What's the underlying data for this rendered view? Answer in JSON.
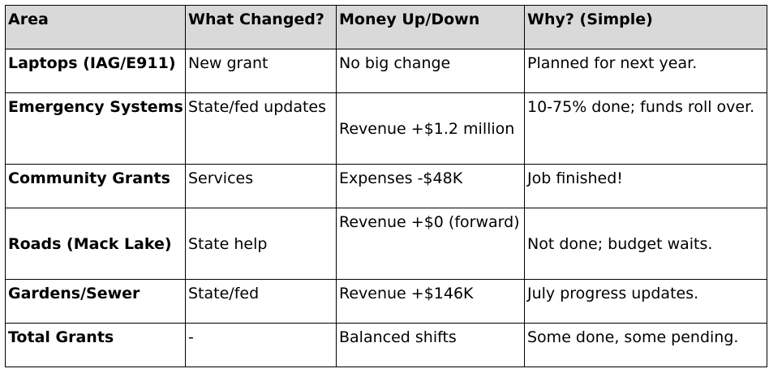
{
  "table": {
    "headers": [
      "Area",
      "What Changed?",
      "Money Up/Down",
      "Why? (Simple)"
    ],
    "rows": [
      [
        "Laptops (IAG/E911)",
        "New grant",
        "No big change",
        "Planned for next year."
      ],
      [
        "Emergency Systems",
        "State/fed updates",
        "Revenue +$1.2 million",
        "10-75% done; funds roll over."
      ],
      [
        "Community Grants",
        "Services",
        "Expenses -$48K",
        "Job finished!"
      ],
      [
        "Roads (Mack Lake)",
        "State help",
        "Revenue +$0 (forward)",
        "Not done; budget waits."
      ],
      [
        "Gardens/Sewer",
        "State/fed",
        "Revenue +$146K",
        "July progress updates."
      ],
      [
        "Total Grants",
        "-",
        "Balanced shifts",
        "Some done, some pending."
      ]
    ]
  }
}
